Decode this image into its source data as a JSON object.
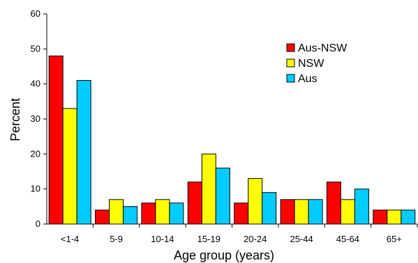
{
  "chart_data": {
    "type": "bar",
    "xlabel": "Age group (years)",
    "ylabel": "Percent",
    "ylim": [
      0,
      60
    ],
    "yticks": [
      "0",
      "10",
      "20",
      "30",
      "40",
      "50",
      "60"
    ],
    "grid": false,
    "legend_position": "top-right",
    "categories": [
      "<1-4",
      "5-9",
      "10-14",
      "15-19",
      "20-24",
      "25-44",
      "45-64",
      "65+"
    ],
    "series": [
      {
        "name": "Aus-NSW",
        "color": "#ff0000",
        "values": [
          48,
          4,
          6,
          12,
          6,
          7,
          12,
          4
        ]
      },
      {
        "name": "NSW",
        "color": "#ffff00",
        "values": [
          33,
          7,
          7,
          20,
          13,
          7,
          7,
          4
        ]
      },
      {
        "name": "Aus",
        "color": "#00ccff",
        "values": [
          41,
          5,
          6,
          16,
          9,
          7,
          10,
          4
        ]
      }
    ]
  }
}
